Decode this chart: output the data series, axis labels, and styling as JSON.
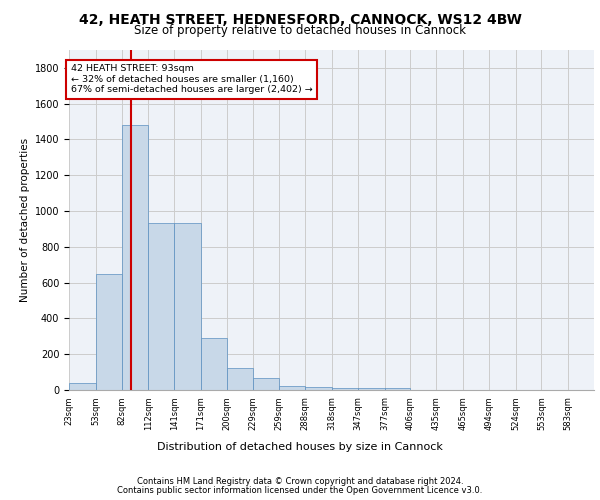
{
  "title1": "42, HEATH STREET, HEDNESFORD, CANNOCK, WS12 4BW",
  "title2": "Size of property relative to detached houses in Cannock",
  "xlabel": "Distribution of detached houses by size in Cannock",
  "ylabel": "Number of detached properties",
  "footer1": "Contains HM Land Registry data © Crown copyright and database right 2024.",
  "footer2": "Contains public sector information licensed under the Open Government Licence v3.0.",
  "annotation_line1": "42 HEATH STREET: 93sqm",
  "annotation_line2": "← 32% of detached houses are smaller (1,160)",
  "annotation_line3": "67% of semi-detached houses are larger (2,402) →",
  "bar_color": "#c8d8e8",
  "bar_edge_color": "#5a8fc0",
  "redline_x": 93,
  "bin_edges": [
    23,
    53,
    82,
    112,
    141,
    171,
    200,
    229,
    259,
    288,
    318,
    347,
    377,
    406,
    435,
    465,
    494,
    524,
    553,
    583,
    612
  ],
  "bar_heights": [
    40,
    650,
    1480,
    935,
    935,
    290,
    125,
    65,
    25,
    15,
    10,
    10,
    10,
    0,
    0,
    0,
    0,
    0,
    0,
    0
  ],
  "ylim": [
    0,
    1900
  ],
  "yticks": [
    0,
    200,
    400,
    600,
    800,
    1000,
    1200,
    1400,
    1600,
    1800
  ],
  "grid_color": "#cccccc",
  "background_color": "#eef2f8",
  "title1_fontsize": 10,
  "title2_fontsize": 8.5,
  "annotation_box_color": "#ffffff",
  "annotation_box_edge": "#cc0000",
  "redline_color": "#cc0000",
  "footer_fontsize": 6,
  "xlabel_fontsize": 8,
  "ylabel_fontsize": 7.5,
  "tick_fontsize": 6,
  "ytick_fontsize": 7
}
